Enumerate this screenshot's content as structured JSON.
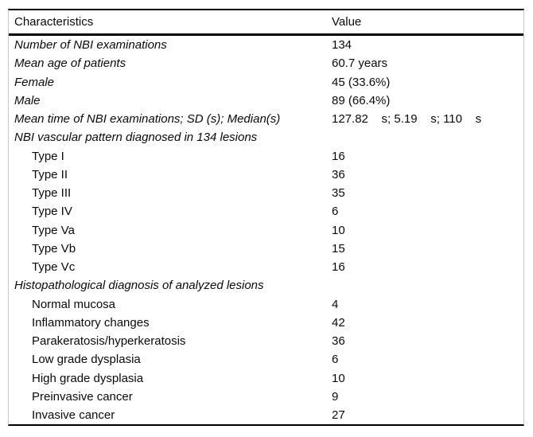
{
  "colors": {
    "background": "#ffffff",
    "text": "#0a0a0a",
    "horizontal_rule": "#000000",
    "side_frame": "#c9c9c9"
  },
  "table": {
    "header": {
      "characteristics": "Characteristics",
      "value": "Value"
    },
    "rows": [
      {
        "kind": "stat",
        "label": "Number of NBI examinations",
        "value": "134"
      },
      {
        "kind": "stat",
        "label": "Mean age of patients",
        "value": "60.7 years"
      },
      {
        "kind": "stat",
        "label": "Female",
        "value": "45 (33.6%)"
      },
      {
        "kind": "stat",
        "label": "Male",
        "value": "89 (66.4%)"
      },
      {
        "kind": "stat",
        "label": "Mean time of NBI examinations; SD (s); Median(s)",
        "value": "127.82    s; 5.19    s; 110    s"
      },
      {
        "kind": "section",
        "label": "NBI vascular pattern diagnosed in 134 lesions",
        "value": ""
      },
      {
        "kind": "sub",
        "label": "Type I",
        "value": "16"
      },
      {
        "kind": "sub",
        "label": "Type II",
        "value": "36"
      },
      {
        "kind": "sub",
        "label": "Type III",
        "value": "35"
      },
      {
        "kind": "sub",
        "label": "Type IV",
        "value": "6"
      },
      {
        "kind": "sub",
        "label": "Type Va",
        "value": "10"
      },
      {
        "kind": "sub",
        "label": "Type Vb",
        "value": "15"
      },
      {
        "kind": "sub",
        "label": "Type Vc",
        "value": "16"
      },
      {
        "kind": "section",
        "label": "Histopathological diagnosis of analyzed lesions",
        "value": ""
      },
      {
        "kind": "sub",
        "label": "Normal mucosa",
        "value": "4"
      },
      {
        "kind": "sub",
        "label": "Inflammatory changes",
        "value": "42"
      },
      {
        "kind": "sub",
        "label": "Parakeratosis/hyperkeratosis",
        "value": "36"
      },
      {
        "kind": "sub",
        "label": "Low grade dysplasia",
        "value": "6"
      },
      {
        "kind": "sub",
        "label": "High grade dysplasia",
        "value": "10"
      },
      {
        "kind": "sub",
        "label": "Preinvasive cancer",
        "value": "9"
      },
      {
        "kind": "sub",
        "label": "Invasive cancer",
        "value": "27"
      }
    ]
  }
}
